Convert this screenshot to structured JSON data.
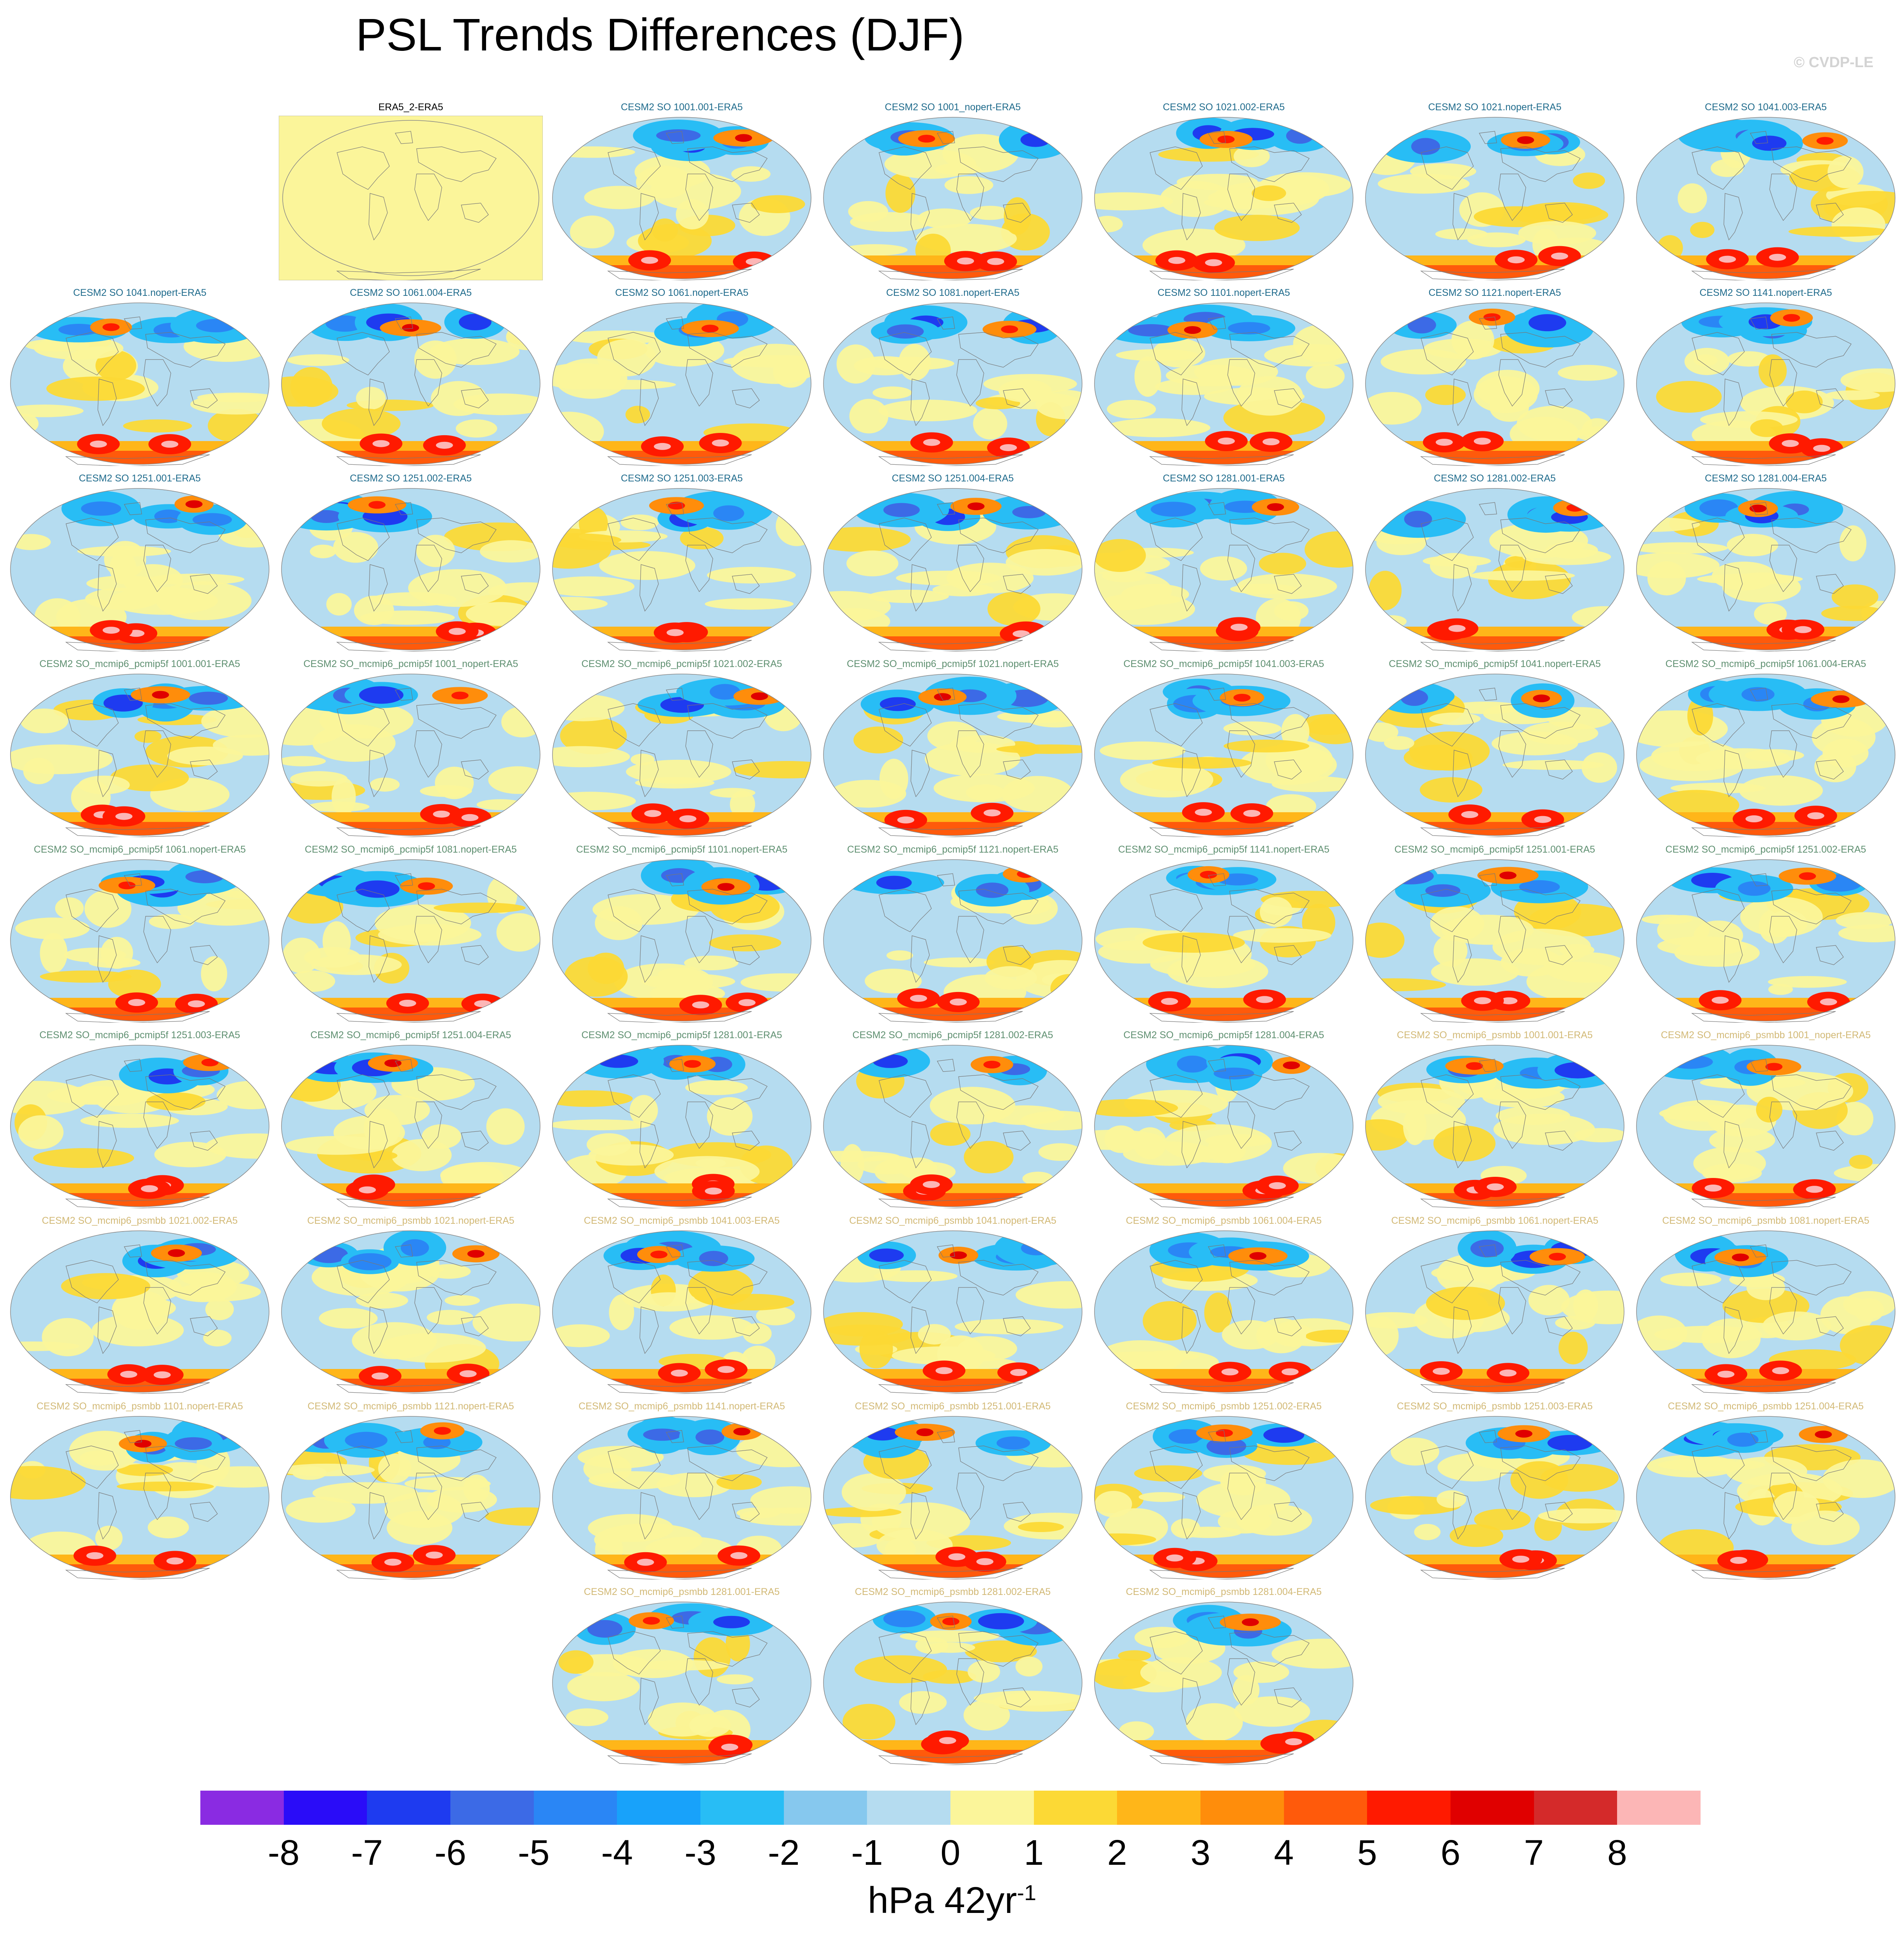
{
  "title": "PSL Trends Differences (DJF)",
  "watermark": "© CVDP-LE",
  "panels": [
    {
      "label": "ERA5_2-ERA5",
      "group": "ref"
    },
    {
      "label": "CESM2 SO 1001.001-ERA5",
      "group": "so"
    },
    {
      "label": "CESM2 SO 1001_nopert-ERA5",
      "group": "so"
    },
    {
      "label": "CESM2 SO 1021.002-ERA5",
      "group": "so"
    },
    {
      "label": "CESM2 SO 1021.nopert-ERA5",
      "group": "so"
    },
    {
      "label": "CESM2 SO 1041.003-ERA5",
      "group": "so"
    },
    {
      "label": "CESM2 SO 1041.nopert-ERA5",
      "group": "so"
    },
    {
      "label": "CESM2 SO 1061.004-ERA5",
      "group": "so"
    },
    {
      "label": "CESM2 SO 1061.nopert-ERA5",
      "group": "so"
    },
    {
      "label": "CESM2 SO 1081.nopert-ERA5",
      "group": "so"
    },
    {
      "label": "CESM2 SO 1101.nopert-ERA5",
      "group": "so"
    },
    {
      "label": "CESM2 SO 1121.nopert-ERA5",
      "group": "so"
    },
    {
      "label": "CESM2 SO 1141.nopert-ERA5",
      "group": "so"
    },
    {
      "label": "CESM2 SO 1251.001-ERA5",
      "group": "so"
    },
    {
      "label": "CESM2 SO 1251.002-ERA5",
      "group": "so"
    },
    {
      "label": "CESM2 SO 1251.003-ERA5",
      "group": "so"
    },
    {
      "label": "CESM2 SO 1251.004-ERA5",
      "group": "so"
    },
    {
      "label": "CESM2 SO 1281.001-ERA5",
      "group": "so"
    },
    {
      "label": "CESM2 SO 1281.002-ERA5",
      "group": "so"
    },
    {
      "label": "CESM2 SO 1281.004-ERA5",
      "group": "so"
    },
    {
      "label": "CESM2 SO_mcmip6_pcmip5f 1001.001-ERA5",
      "group": "pcmip"
    },
    {
      "label": "CESM2 SO_mcmip6_pcmip5f 1001_nopert-ERA5",
      "group": "pcmip"
    },
    {
      "label": "CESM2 SO_mcmip6_pcmip5f 1021.002-ERA5",
      "group": "pcmip"
    },
    {
      "label": "CESM2 SO_mcmip6_pcmip5f 1021.nopert-ERA5",
      "group": "pcmip"
    },
    {
      "label": "CESM2 SO_mcmip6_pcmip5f 1041.003-ERA5",
      "group": "pcmip"
    },
    {
      "label": "CESM2 SO_mcmip6_pcmip5f 1041.nopert-ERA5",
      "group": "pcmip"
    },
    {
      "label": "CESM2 SO_mcmip6_pcmip5f 1061.004-ERA5",
      "group": "pcmip"
    },
    {
      "label": "CESM2 SO_mcmip6_pcmip5f 1061.nopert-ERA5",
      "group": "pcmip"
    },
    {
      "label": "CESM2 SO_mcmip6_pcmip5f 1081.nopert-ERA5",
      "group": "pcmip"
    },
    {
      "label": "CESM2 SO_mcmip6_pcmip5f 1101.nopert-ERA5",
      "group": "pcmip"
    },
    {
      "label": "CESM2 SO_mcmip6_pcmip5f 1121.nopert-ERA5",
      "group": "pcmip"
    },
    {
      "label": "CESM2 SO_mcmip6_pcmip5f 1141.nopert-ERA5",
      "group": "pcmip"
    },
    {
      "label": "CESM2 SO_mcmip6_pcmip5f 1251.001-ERA5",
      "group": "pcmip"
    },
    {
      "label": "CESM2 SO_mcmip6_pcmip5f 1251.002-ERA5",
      "group": "pcmip"
    },
    {
      "label": "CESM2 SO_mcmip6_pcmip5f 1251.003-ERA5",
      "group": "pcmip"
    },
    {
      "label": "CESM2 SO_mcmip6_pcmip5f 1251.004-ERA5",
      "group": "pcmip"
    },
    {
      "label": "CESM2 SO_mcmip6_pcmip5f 1281.001-ERA5",
      "group": "pcmip"
    },
    {
      "label": "CESM2 SO_mcmip6_pcmip5f 1281.002-ERA5",
      "group": "pcmip"
    },
    {
      "label": "CESM2 SO_mcmip6_pcmip5f 1281.004-ERA5",
      "group": "pcmip"
    },
    {
      "label": "CESM2 SO_mcmip6_psmbb 1001.001-ERA5",
      "group": "psmbb"
    },
    {
      "label": "CESM2 SO_mcmip6_psmbb 1001_nopert-ERA5",
      "group": "psmbb"
    },
    {
      "label": "CESM2 SO_mcmip6_psmbb 1021.002-ERA5",
      "group": "psmbb"
    },
    {
      "label": "CESM2 SO_mcmip6_psmbb 1021.nopert-ERA5",
      "group": "psmbb"
    },
    {
      "label": "CESM2 SO_mcmip6_psmbb 1041.003-ERA5",
      "group": "psmbb"
    },
    {
      "label": "CESM2 SO_mcmip6_psmbb 1041.nopert-ERA5",
      "group": "psmbb"
    },
    {
      "label": "CESM2 SO_mcmip6_psmbb 1061.004-ERA5",
      "group": "psmbb"
    },
    {
      "label": "CESM2 SO_mcmip6_psmbb 1061.nopert-ERA5",
      "group": "psmbb"
    },
    {
      "label": "CESM2 SO_mcmip6_psmbb 1081.nopert-ERA5",
      "group": "psmbb"
    },
    {
      "label": "CESM2 SO_mcmip6_psmbb 1101.nopert-ERA5",
      "group": "psmbb"
    },
    {
      "label": "CESM2 SO_mcmip6_psmbb 1121.nopert-ERA5",
      "group": "psmbb"
    },
    {
      "label": "CESM2 SO_mcmip6_psmbb 1141.nopert-ERA5",
      "group": "psmbb"
    },
    {
      "label": "CESM2 SO_mcmip6_psmbb 1251.001-ERA5",
      "group": "psmbb"
    },
    {
      "label": "CESM2 SO_mcmip6_psmbb 1251.002-ERA5",
      "group": "psmbb"
    },
    {
      "label": "CESM2 SO_mcmip6_psmbb 1251.003-ERA5",
      "group": "psmbb"
    },
    {
      "label": "CESM2 SO_mcmip6_psmbb 1251.004-ERA5",
      "group": "psmbb"
    },
    {
      "label": "CESM2 SO_mcmip6_psmbb 1281.001-ERA5",
      "group": "psmbb"
    },
    {
      "label": "CESM2 SO_mcmip6_psmbb 1281.002-ERA5",
      "group": "psmbb"
    },
    {
      "label": "CESM2 SO_mcmip6_psmbb 1281.004-ERA5",
      "group": "psmbb"
    }
  ],
  "colorbar": {
    "colors": [
      "#8a2be2",
      "#2a0cf8",
      "#1e3bf0",
      "#3c6ae6",
      "#2a86f5",
      "#18a2fa",
      "#28bdf5",
      "#86c8ee",
      "#b5dcf0",
      "#fbf59a",
      "#fcd935",
      "#ffb619",
      "#ff8d0b",
      "#ff5a0b",
      "#ff1a00",
      "#e00000",
      "#d42a2a",
      "#fcb6b6"
    ],
    "ticks": [
      "-8",
      "-7",
      "-6",
      "-5",
      "-4",
      "-3",
      "-2",
      "-1",
      "0",
      "1",
      "2",
      "3",
      "4",
      "5",
      "6",
      "7",
      "8"
    ]
  },
  "units": "hPa 42yr",
  "units_sup": "-1",
  "colors": {
    "so_label": "#1f6b8c",
    "pcmip_label": "#5e8f70",
    "psmbb_label": "#d2b976",
    "ref_fill": "#fbf59a",
    "ocean_base": "#b5dcf0"
  }
}
